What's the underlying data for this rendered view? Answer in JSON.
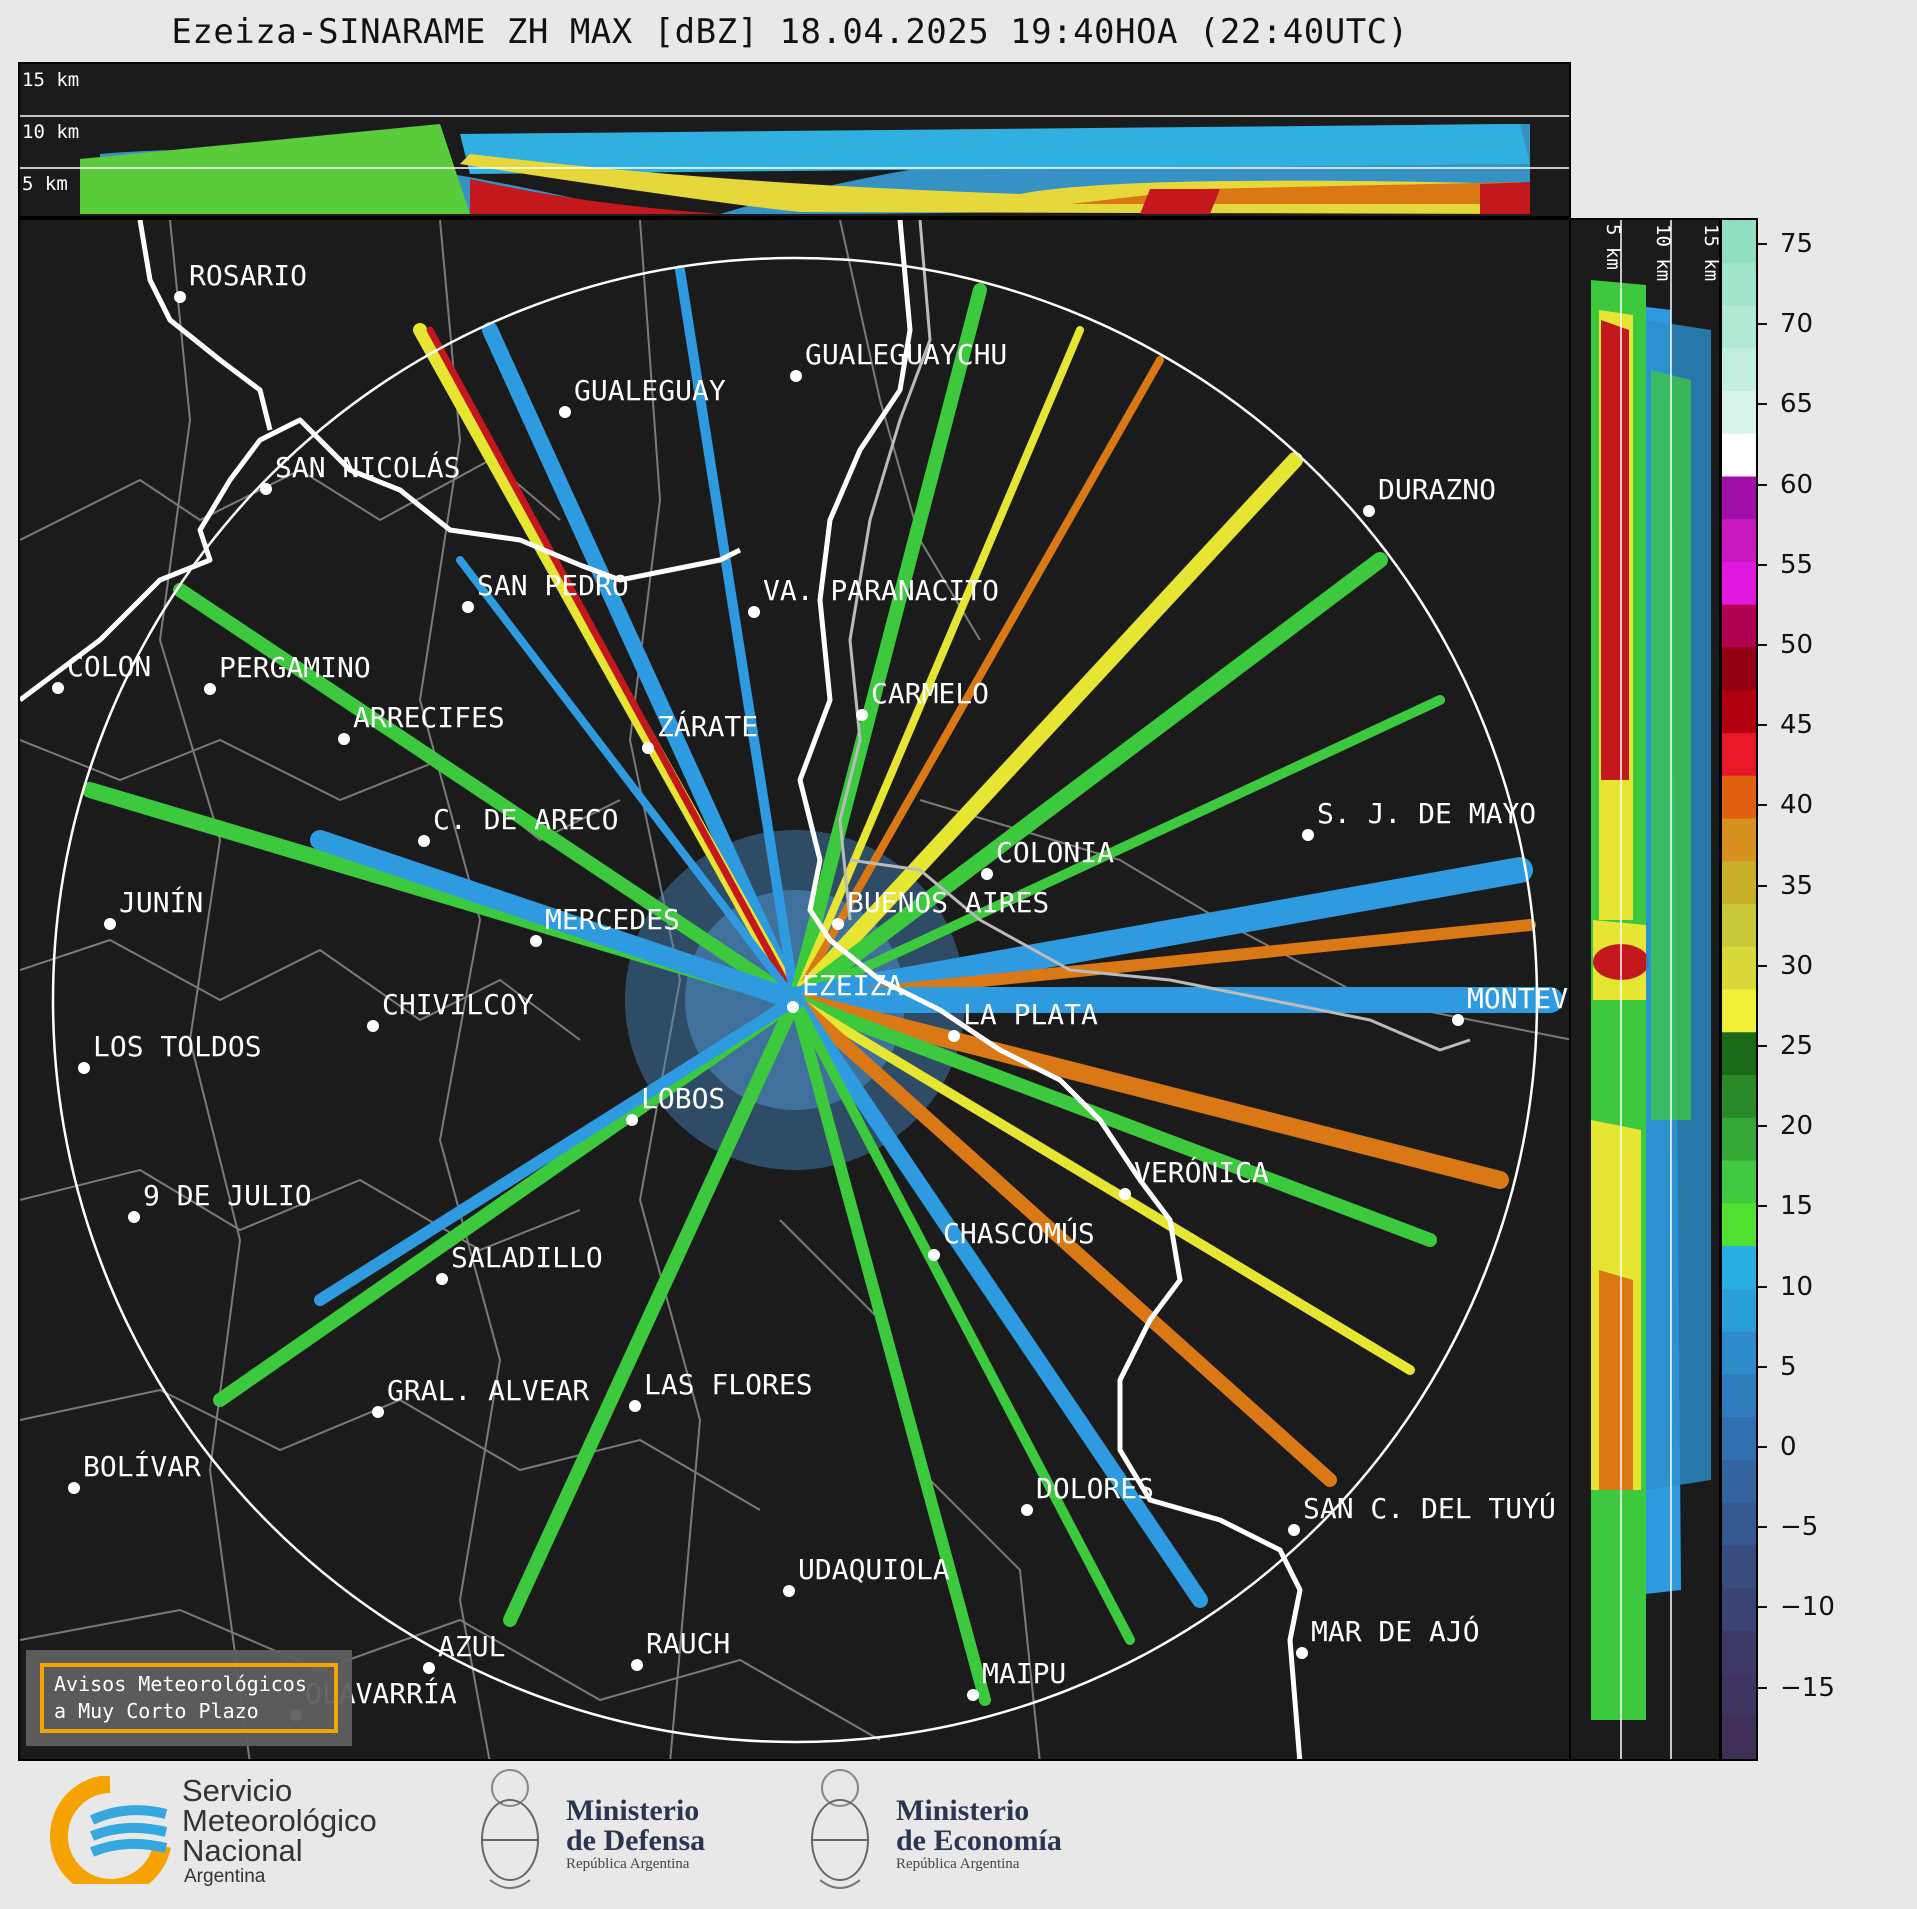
{
  "title": "Ezeiza-SINARAME ZH MAX [dBZ] 18.04.2025 19:40HOA (22:40UTC)",
  "top_panel": {
    "height_labels": [
      "15 km",
      "10 km",
      "5 km"
    ]
  },
  "side_panel": {
    "height_labels": [
      "5 km",
      "10 km",
      "15 km"
    ]
  },
  "colorbar": {
    "unit": "dBZ",
    "ticks": [
      "75",
      "70",
      "65",
      "60",
      "55",
      "50",
      "45",
      "40",
      "35",
      "30",
      "25",
      "20",
      "15",
      "10",
      "5",
      "0",
      "−5",
      "−10",
      "−15"
    ]
  },
  "cities": [
    "ROSARIO",
    "GUALEGUAYCHU",
    "GUALEGUAY",
    "SAN NICOLÁS",
    "DURAZNO",
    "SAN PEDRO",
    "VA. PARANACITO",
    "COLON",
    "PERGAMINO",
    "CARMELO",
    "ARRECIFES",
    "ZÁRATE",
    "S. J. DE MAYO",
    "C. DE ARECO",
    "COLONIA",
    "JUNÍN",
    "BUENOS AIRES",
    "MERCEDES",
    "EZEIZA",
    "MONTEVIDEO",
    "CHIVILCOY",
    "LA PLATA",
    "LOS TOLDOS",
    "LOBOS",
    "VERÓNICA",
    "9 DE JULIO",
    "CHASCOMÚS",
    "SALADILLO",
    "LAS FLORES",
    "GRAL. ALVEAR",
    "BOLÍVAR",
    "DOLORES",
    "SAN C. DEL TUYÚ",
    "UDAQUIOLA",
    "MAR DE AJÓ",
    "AZUL",
    "RAUCH",
    "OLAVARRÍA",
    "MAIPU"
  ],
  "warning_box": {
    "line1": "Avisos Meteorológicos",
    "line2": "a Muy Corto Plazo"
  },
  "logos": {
    "smn": {
      "name_lines": [
        "Servicio",
        "Meteorológico",
        "Nacional"
      ],
      "country": "Argentina"
    },
    "defensa": {
      "title_lines": [
        "Ministerio",
        "de Defensa"
      ],
      "subtitle": "República Argentina"
    },
    "economia": {
      "title_lines": [
        "Ministerio",
        "de Economía"
      ],
      "subtitle": "República Argentina"
    }
  },
  "colors": {
    "background_panel": "#1b1b1b",
    "map_boundaries": "#7a7a7a",
    "coastline": "#ffffff",
    "warning_border": "#f5a300",
    "smn_orange": "#f5a300",
    "smn_blue": "#35a8e0"
  }
}
